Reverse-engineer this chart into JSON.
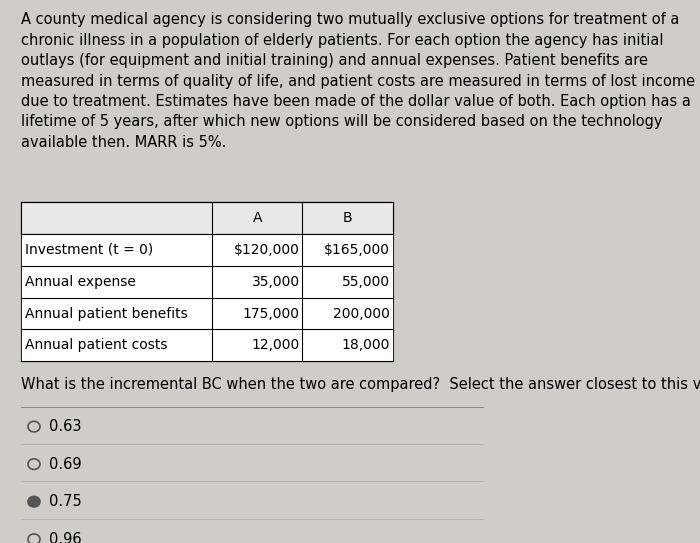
{
  "paragraph": "A county medical agency is considering two mutually exclusive options for treatment of a chronic illness in a population of elderly patients. For each option the agency has initial outlays (for equipment and initial training) and annual expenses. Patient benefits are measured in terms of quality of life, and patient costs are measured in terms of lost income due to treatment. Estimates have been made of the dollar value of both. Each option has a lifetime of 5 years, after which new options will be considered based on the technology available then. MARR is 5%.",
  "table_headers": [
    "",
    "A",
    "B"
  ],
  "table_rows": [
    [
      "Investment (t = 0)",
      "$120,000",
      "$165,000"
    ],
    [
      "Annual expense",
      "35,000",
      "55,000"
    ],
    [
      "Annual patient benefits",
      "175,000",
      "200,000"
    ],
    [
      "Annual patient costs",
      "12,000",
      "18,000"
    ]
  ],
  "question": "What is the incremental BC when the two are compared?  Select the answer closest to this value.",
  "options": [
    "0.63",
    "0.69",
    "0.75",
    "0.96"
  ],
  "selected_option": "0.75",
  "bg_color": "#d0cdc8",
  "table_bg": "#ffffff",
  "text_color": "#000000",
  "font_size_paragraph": 10.5,
  "font_size_table": 10.0,
  "font_size_question": 10.5,
  "font_size_options": 10.5
}
